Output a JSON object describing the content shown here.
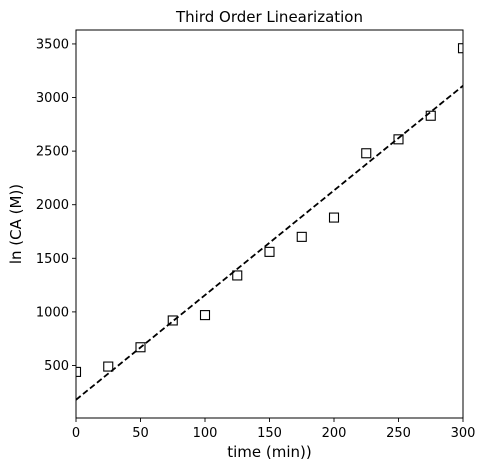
{
  "chart_data": {
    "type": "scatter",
    "title": "Third Order Linearization",
    "xlabel": "time (min))",
    "ylabel": "ln (CA (M))",
    "xlim": [
      0,
      300
    ],
    "ylim": [
      10,
      3630
    ],
    "xticks": [
      0,
      50,
      100,
      150,
      200,
      250,
      300
    ],
    "yticks": [
      500,
      1000,
      1500,
      2000,
      2500,
      3000,
      3500
    ],
    "grid": false,
    "series": [
      {
        "marker": "square",
        "markerfacecolor": "#ffffff",
        "markeredgecolor": "#000000",
        "x": [
          0,
          25,
          50,
          75,
          100,
          125,
          150,
          175,
          200,
          225,
          250,
          275,
          300
        ],
        "y": [
          440,
          490,
          670,
          920,
          970,
          1340,
          1560,
          1700,
          1880,
          2480,
          2610,
          2830,
          3460
        ]
      },
      {
        "style": "dashed",
        "color": "#000000",
        "x": [
          0,
          300
        ],
        "y": [
          180,
          3110
        ]
      }
    ]
  }
}
